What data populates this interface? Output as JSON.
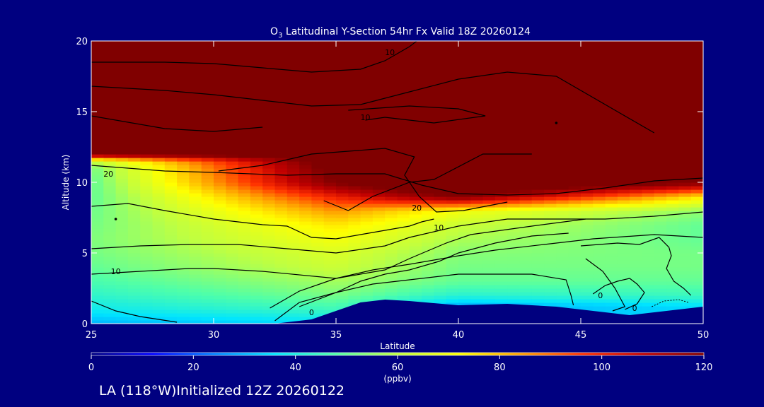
{
  "chart_data": {
    "type": "heatmap",
    "title_species": "O",
    "title_subscript": "3",
    "title_rest": " Latitudinal Y-Section 54hr  Fx Valid 18Z 20260124",
    "xlabel": "Latitude",
    "ylabel": "Altitude (km)",
    "xlim": [
      25,
      50
    ],
    "ylim": [
      0,
      20
    ],
    "x_ticks": [
      "25",
      "30",
      "35",
      "40",
      "45",
      "50"
    ],
    "y_ticks": [
      "0",
      "5",
      "10",
      "15",
      "20"
    ],
    "colorbar": {
      "min": 0,
      "max": 120,
      "ticks": [
        "0",
        "20",
        "40",
        "60",
        "80",
        "100",
        "120"
      ],
      "units": "(ppbv)",
      "colors": [
        "#00007f",
        "#0000ff",
        "#0080ff",
        "#00e5ff",
        "#50ffa8",
        "#c0ff40",
        "#ffff00",
        "#ffa000",
        "#ff3000",
        "#c00000",
        "#800000"
      ]
    },
    "surface_km": [
      [
        25,
        0
      ],
      [
        32.5,
        0
      ],
      [
        34,
        0.3
      ],
      [
        35,
        0.9
      ],
      [
        36,
        1.5
      ],
      [
        37,
        1.7
      ],
      [
        38,
        1.6
      ],
      [
        40,
        1.3
      ],
      [
        42,
        1.4
      ],
      [
        44,
        1.2
      ],
      [
        45.5,
        0.9
      ],
      [
        47,
        0.6
      ],
      [
        50,
        1.2
      ]
    ],
    "ozone_profile_ppbv": [
      {
        "lat": 25,
        "alt_km": [
          0,
          1,
          2,
          3,
          4,
          5,
          6,
          7,
          8,
          9,
          10,
          11,
          11.5,
          12,
          13,
          14,
          15,
          17,
          20
        ],
        "ppbv": [
          30,
          38,
          43,
          47,
          50,
          52,
          53,
          52,
          51,
          50,
          50,
          52,
          60,
          120,
          125,
          130,
          135,
          150,
          200
        ]
      },
      {
        "lat": 35,
        "alt_km": [
          0,
          1,
          2,
          3,
          4,
          5,
          6,
          7,
          8,
          9,
          10,
          11,
          12,
          15,
          20
        ],
        "ppbv": [
          35,
          45,
          52,
          57,
          62,
          65,
          70,
          75,
          85,
          100,
          120,
          125,
          130,
          140,
          200
        ]
      },
      {
        "lat": 40,
        "alt_km": [
          1.3,
          2,
          3,
          4,
          5,
          6,
          7,
          8,
          9,
          10,
          12,
          15,
          20
        ],
        "ppbv": [
          30,
          42,
          50,
          52,
          54,
          58,
          62,
          70,
          120,
          140,
          160,
          180,
          200
        ]
      },
      {
        "lat": 50,
        "alt_km": [
          1.2,
          2,
          3,
          4,
          5,
          6,
          7,
          8,
          9,
          10,
          12,
          15,
          20
        ],
        "ppbv": [
          35,
          45,
          50,
          52,
          52,
          50,
          50,
          55,
          75,
          120,
          150,
          180,
          200
        ]
      }
    ],
    "contour_labels": [
      {
        "text": "10",
        "lat": 36.2,
        "alt_km": 14.6
      },
      {
        "text": "10",
        "lat": 39.2,
        "alt_km": 6.8
      },
      {
        "text": "10",
        "lat": 26.0,
        "alt_km": 3.7
      },
      {
        "text": "20",
        "lat": 25.7,
        "alt_km": 10.6
      },
      {
        "text": "20",
        "lat": 38.3,
        "alt_km": 8.2
      },
      {
        "text": "10",
        "lat": 37.2,
        "alt_km": 19.2
      },
      {
        "text": "0",
        "lat": 34.0,
        "alt_km": 0.8
      },
      {
        "text": "0",
        "lat": 45.8,
        "alt_km": 2.0
      },
      {
        "text": "0",
        "lat": 47.2,
        "alt_km": 1.1
      }
    ],
    "contour_lines": [
      [
        [
          25,
          18.5
        ],
        [
          28,
          18.5
        ],
        [
          30,
          18.4
        ],
        [
          32,
          18.1
        ],
        [
          34,
          17.8
        ],
        [
          36,
          18.0
        ],
        [
          37,
          18.6
        ],
        [
          38,
          19.6
        ],
        [
          38.3,
          20
        ]
      ],
      [
        [
          25,
          16.8
        ],
        [
          28,
          16.5
        ],
        [
          30,
          16.2
        ],
        [
          32,
          15.8
        ],
        [
          34,
          15.4
        ],
        [
          36,
          15.5
        ],
        [
          38,
          16.4
        ],
        [
          40,
          17.3
        ],
        [
          42,
          17.8
        ],
        [
          44,
          17.5
        ],
        [
          46,
          15.5
        ],
        [
          48,
          13.5
        ]
      ],
      [
        [
          25,
          14.7
        ],
        [
          28,
          13.8
        ],
        [
          30,
          13.6
        ],
        [
          32,
          13.9
        ]
      ],
      [
        [
          35.5,
          15.1
        ],
        [
          38,
          15.4
        ],
        [
          40,
          15.2
        ],
        [
          41.1,
          14.7
        ],
        [
          39,
          14.2
        ],
        [
          37,
          14.6
        ],
        [
          36.2,
          14.4
        ]
      ],
      [
        [
          30.2,
          10.8
        ],
        [
          32,
          11.2
        ],
        [
          34,
          12.0
        ],
        [
          37,
          12.4
        ],
        [
          38.2,
          11.8
        ],
        [
          37.8,
          10.5
        ],
        [
          38.4,
          9.0
        ],
        [
          39.1,
          7.9
        ],
        [
          40.2,
          8.0
        ],
        [
          42,
          8.6
        ]
      ],
      [
        [
          34.5,
          8.7
        ],
        [
          35.5,
          8.0
        ],
        [
          36.5,
          9.0
        ],
        [
          38,
          10.0
        ],
        [
          39,
          10.2
        ],
        [
          41,
          12.0
        ],
        [
          43,
          12.0
        ]
      ],
      [
        [
          25,
          11.2
        ],
        [
          28,
          10.8
        ],
        [
          30,
          10.7
        ],
        [
          33,
          10.5
        ],
        [
          35,
          10.6
        ],
        [
          37,
          10.6
        ],
        [
          38.5,
          9.8
        ],
        [
          40,
          9.2
        ],
        [
          42,
          9.1
        ],
        [
          44,
          9.2
        ],
        [
          46,
          9.6
        ],
        [
          48,
          10.1
        ],
        [
          50,
          10.3
        ]
      ],
      [
        [
          25,
          8.3
        ],
        [
          26.5,
          8.5
        ],
        [
          28,
          8.0
        ],
        [
          30,
          7.4
        ],
        [
          32,
          7.0
        ],
        [
          33,
          6.9
        ],
        [
          34,
          6.1
        ],
        [
          35,
          6.0
        ],
        [
          36,
          6.3
        ],
        [
          37,
          6.6
        ],
        [
          38,
          6.9
        ],
        [
          38.5,
          7.2
        ],
        [
          39,
          7.4
        ]
      ],
      [
        [
          25,
          5.3
        ],
        [
          27,
          5.5
        ],
        [
          29,
          5.6
        ],
        [
          31,
          5.6
        ],
        [
          33,
          5.3
        ],
        [
          35,
          5.0
        ],
        [
          37,
          5.5
        ],
        [
          38,
          6.1
        ],
        [
          40,
          6.9
        ],
        [
          42,
          7.4
        ],
        [
          44,
          7.4
        ],
        [
          46,
          7.4
        ],
        [
          48,
          7.6
        ],
        [
          50,
          7.9
        ]
      ],
      [
        [
          25,
          3.5
        ],
        [
          27,
          3.7
        ],
        [
          29,
          3.9
        ],
        [
          30,
          3.9
        ],
        [
          32,
          3.7
        ],
        [
          35,
          3.2
        ],
        [
          37,
          3.8
        ],
        [
          38,
          4.6
        ],
        [
          39.5,
          5.7
        ],
        [
          40.5,
          6.3
        ],
        [
          43,
          6.9
        ],
        [
          45.2,
          7.4
        ]
      ],
      [
        [
          33.5,
          1.2
        ],
        [
          35,
          2.2
        ],
        [
          36,
          3.0
        ],
        [
          37,
          3.5
        ],
        [
          38,
          3.8
        ],
        [
          39.2,
          4.4
        ],
        [
          40,
          5.0
        ],
        [
          41.5,
          5.7
        ],
        [
          43,
          6.2
        ],
        [
          44.5,
          6.4
        ]
      ],
      [
        [
          32.3,
          1.1
        ],
        [
          33.5,
          2.3
        ],
        [
          35,
          3.2
        ],
        [
          36.5,
          3.8
        ],
        [
          38,
          4.2
        ],
        [
          40,
          4.8
        ],
        [
          41.5,
          5.2
        ],
        [
          43.5,
          5.6
        ],
        [
          45.5,
          6.0
        ],
        [
          48,
          6.3
        ],
        [
          50,
          6.1
        ]
      ],
      [
        [
          25,
          1.6
        ],
        [
          26,
          0.9
        ],
        [
          27,
          0.5
        ],
        [
          28.5,
          0.1
        ]
      ],
      [
        [
          32.5,
          0.2
        ],
        [
          33.5,
          1.5
        ],
        [
          35,
          2.2
        ],
        [
          36.5,
          2.8
        ],
        [
          38,
          3.1
        ],
        [
          40,
          3.5
        ],
        [
          41.5,
          3.5
        ],
        [
          43,
          3.5
        ],
        [
          44.4,
          3.1
        ],
        [
          44.6,
          2.0
        ],
        [
          44.7,
          1.3
        ]
      ],
      [
        [
          45.0,
          5.5
        ],
        [
          46.5,
          5.7
        ],
        [
          47.4,
          5.6
        ],
        [
          48.2,
          6.1
        ],
        [
          48.6,
          5.4
        ],
        [
          48.7,
          4.8
        ],
        [
          48.5,
          3.9
        ],
        [
          48.8,
          3.0
        ],
        [
          49.2,
          2.5
        ],
        [
          49.5,
          2.0
        ]
      ],
      [
        [
          45.2,
          4.6
        ],
        [
          45.9,
          3.7
        ],
        [
          46.4,
          2.5
        ],
        [
          46.8,
          1.2
        ],
        [
          46.3,
          0.9
        ]
      ],
      [
        [
          45.5,
          2.1
        ],
        [
          46.0,
          2.7
        ],
        [
          46.5,
          3.0
        ],
        [
          47.0,
          3.2
        ],
        [
          47.3,
          2.8
        ],
        [
          47.6,
          2.2
        ],
        [
          47.3,
          1.4
        ],
        [
          46.8,
          1.0
        ]
      ]
    ],
    "dashed_contours": [
      [
        [
          47.9,
          1.2
        ],
        [
          48.4,
          1.6
        ],
        [
          49.0,
          1.7
        ],
        [
          49.4,
          1.5
        ]
      ]
    ],
    "point_markers": [
      {
        "lat": 44.0,
        "alt_km": 14.2
      },
      {
        "lat": 26.0,
        "alt_km": 7.4
      }
    ]
  },
  "footer": "LA (118°W)Initialized 12Z 20260122"
}
